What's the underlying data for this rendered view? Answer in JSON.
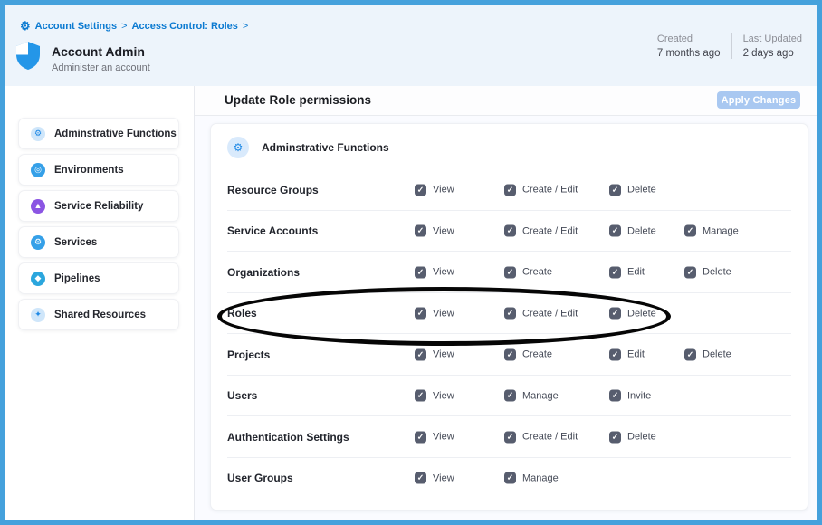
{
  "breadcrumb": {
    "items": [
      "Account Settings",
      "Access Control: Roles"
    ],
    "separator": ">",
    "gear_glyph": "⚙"
  },
  "role_header": {
    "title": "Account Admin",
    "subtitle": "Administer an account"
  },
  "meta": {
    "created_label": "Created",
    "created_value": "7 months ago",
    "updated_label": "Last Updated",
    "updated_value": "2 days ago"
  },
  "toolbar": {
    "title": "Update Role permissions",
    "apply_label": "Apply Changes"
  },
  "sidebar": {
    "items": [
      {
        "label": "Adminstrative Functions",
        "icon": "gear-icon",
        "glyph": "⚙",
        "style": "light"
      },
      {
        "label": "Environments",
        "icon": "environments-icon",
        "glyph": "◎",
        "style": "blue"
      },
      {
        "label": "Service Reliability",
        "icon": "service-reliability-icon",
        "glyph": "▲",
        "style": "purple"
      },
      {
        "label": "Services",
        "icon": "services-icon",
        "glyph": "⚙",
        "style": "blue"
      },
      {
        "label": "Pipelines",
        "icon": "pipelines-icon",
        "glyph": "◆",
        "style": "cyan"
      },
      {
        "label": "Shared Resources",
        "icon": "shared-resources-icon",
        "glyph": "✦",
        "style": "light"
      }
    ]
  },
  "permissions_section": {
    "title": "Adminstrative Functions",
    "check_glyph": "✓",
    "rows": [
      {
        "resource": "Resource Groups",
        "permissions": [
          {
            "label": "View",
            "checked": true
          },
          {
            "label": "Create / Edit",
            "checked": true
          },
          {
            "label": "Delete",
            "checked": true
          }
        ]
      },
      {
        "resource": "Service Accounts",
        "permissions": [
          {
            "label": "View",
            "checked": true
          },
          {
            "label": "Create / Edit",
            "checked": true
          },
          {
            "label": "Delete",
            "checked": true
          },
          {
            "label": "Manage",
            "checked": true
          }
        ]
      },
      {
        "resource": "Organizations",
        "permissions": [
          {
            "label": "View",
            "checked": true
          },
          {
            "label": "Create",
            "checked": true
          },
          {
            "label": "Edit",
            "checked": true
          },
          {
            "label": "Delete",
            "checked": true
          }
        ]
      },
      {
        "resource": "Roles",
        "permissions": [
          {
            "label": "View",
            "checked": true
          },
          {
            "label": "Create / Edit",
            "checked": true
          },
          {
            "label": "Delete",
            "checked": true
          }
        ]
      },
      {
        "resource": "Projects",
        "permissions": [
          {
            "label": "View",
            "checked": true
          },
          {
            "label": "Create",
            "checked": true
          },
          {
            "label": "Edit",
            "checked": true
          },
          {
            "label": "Delete",
            "checked": true
          }
        ]
      },
      {
        "resource": "Users",
        "permissions": [
          {
            "label": "View",
            "checked": true
          },
          {
            "label": "Manage",
            "checked": true
          },
          {
            "label": "Invite",
            "checked": true
          }
        ]
      },
      {
        "resource": "Authentication Settings",
        "permissions": [
          {
            "label": "View",
            "checked": true
          },
          {
            "label": "Create / Edit",
            "checked": true
          },
          {
            "label": "Delete",
            "checked": true
          }
        ]
      },
      {
        "resource": "User Groups",
        "permissions": [
          {
            "label": "View",
            "checked": true
          },
          {
            "label": "Manage",
            "checked": true
          }
        ]
      }
    ]
  },
  "annotation": {
    "type": "ellipse",
    "highlighted_row": "Roles",
    "color": "#000000"
  },
  "colors": {
    "page_border": "#45a1dc",
    "header_band": "#edf4fb",
    "breadcrumb_blue": "#0b7ad1",
    "checkbox": "#575d6e",
    "apply_button_bg": "#a9c8f1",
    "purple_icon": "#8b55e3",
    "blue_icon": "#35a0e8"
  }
}
